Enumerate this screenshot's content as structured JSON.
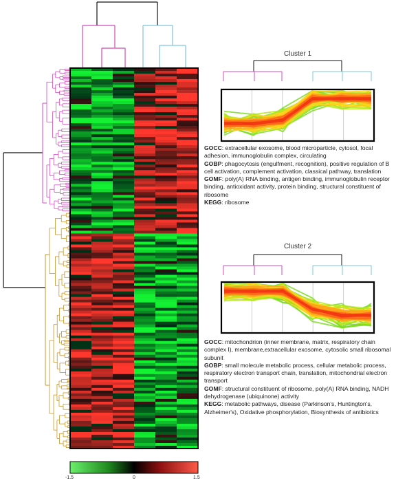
{
  "clusters": [
    {
      "title": "Cluster 1",
      "annotations": [
        {
          "key": "GOCC",
          "text": ": extracellular exosome, blood microparticle, cytosol, focal adhesion, immunoglobulin complex, circulating"
        },
        {
          "key": "GOBP",
          "text": ": phagocytosis (engulfment, recognition), positive regulation of B cell activation, complement activation, classical pathway, translation"
        },
        {
          "key": "GOMF",
          "text": ": poly(A) RNA binding, antigen binding, immunoglobulin receptor binding, antioxidant activity, protein binding, structural constituent of ribosome"
        },
        {
          "key": "KEGG",
          "text": ": ribosome"
        }
      ]
    },
    {
      "title": "Cluster 2",
      "annotations": [
        {
          "key": "GOCC",
          "text": ": mitochondrion (inner membrane, matrix, respiratory chain complex I), membrane,extracellular exosome, cytosolic small ribosomal subunit"
        },
        {
          "key": "GOBP",
          "text": ": small molecule metabolic process, cellular metabolic process, respiratory electron transport chain, translation, mitochondrial electron transport"
        },
        {
          "key": "GOMF",
          "text": ": structural constituent of ribosome, poly(A) RNA binding, NADH dehydrogenase (ubiquinone) activity"
        },
        {
          "key": "KEGG",
          "text": ": metabolic pathways, disease (Parkinson's, Huntington's, Alzheimer's), Oxidative phosphorylation, Biosynthesis of antibiotics"
        }
      ]
    }
  ],
  "color_scale": {
    "labels": [
      "-1.5",
      "0",
      "1.5"
    ],
    "colors": [
      "#33e633",
      "#000000",
      "#ff3322"
    ]
  },
  "colors": {
    "dendro_group1": "#d04bbf",
    "dendro_group2": "#7fc4df",
    "dendro_rows_top": "#d04bbf",
    "dendro_rows_bottom": "#c99422",
    "dendro_root": "#111111"
  }
}
